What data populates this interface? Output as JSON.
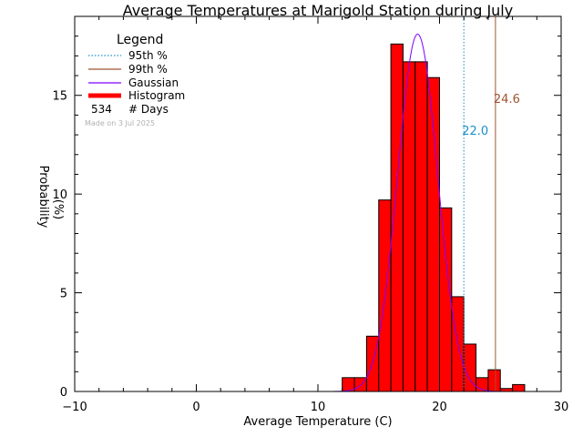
{
  "chart_data": {
    "type": "bar",
    "title": "Average Temperatures at Marigold Station during July",
    "xlabel": "Average Temperature (C)",
    "ylabel_line1": "Probability",
    "ylabel_line2": "(%)",
    "xlim": [
      -10,
      30
    ],
    "ylim": [
      0,
      19
    ],
    "x_ticks": [
      -10,
      0,
      10,
      20,
      30
    ],
    "y_ticks": [
      0,
      5,
      10,
      15
    ],
    "histogram": {
      "bin_width": 1,
      "bin_starts": [
        12,
        13,
        14,
        15,
        16,
        17,
        18,
        19,
        20,
        21,
        22,
        23,
        24,
        25,
        26
      ],
      "values": [
        0.7,
        0.7,
        2.8,
        9.7,
        17.6,
        16.7,
        16.7,
        15.9,
        9.3,
        4.8,
        2.4,
        0.7,
        1.1,
        0.15,
        0.35
      ],
      "color": "#ff0000"
    },
    "gaussian": {
      "mean": 18.2,
      "sigma": 1.65,
      "peak": 18.1,
      "color": "#8000ff"
    },
    "p95": {
      "value": 22.0,
      "label": "22.0",
      "color": "#1a8fc8"
    },
    "p99": {
      "value": 24.6,
      "label": "24.6",
      "color": "#a0522d"
    },
    "legend": {
      "title": "Legend",
      "items": [
        {
          "label": "95th %",
          "kind": "dotted",
          "color": "#1a8fc8"
        },
        {
          "label": "99th %",
          "kind": "line",
          "color": "#a0522d"
        },
        {
          "label": "Gaussian",
          "kind": "line",
          "color": "#8000ff"
        },
        {
          "label": "Histogram",
          "kind": "thick",
          "color": "#ff0000"
        }
      ],
      "days_count": "534",
      "days_label": "# Days",
      "made_on": "Made on 3 Jul 2025"
    }
  }
}
